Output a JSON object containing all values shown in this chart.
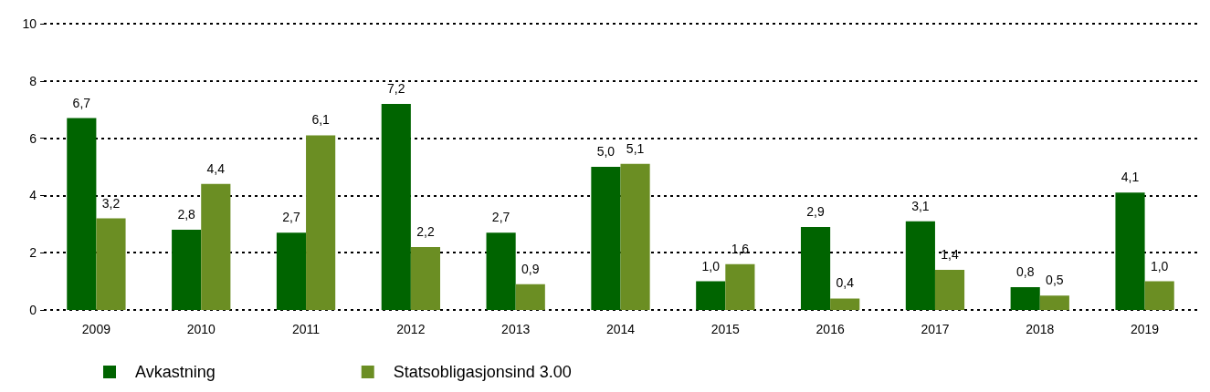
{
  "chart_data": {
    "type": "bar",
    "categories": [
      "2009",
      "2010",
      "2011",
      "2012",
      "2013",
      "2014",
      "2015",
      "2016",
      "2017",
      "2018",
      "2019"
    ],
    "series": [
      {
        "name": "Avkastning",
        "color": "#006400",
        "values": [
          6.7,
          2.8,
          2.7,
          7.2,
          2.7,
          5.0,
          1.0,
          2.9,
          3.1,
          0.8,
          4.1
        ],
        "value_labels": [
          "6,7",
          "2,8",
          "2,7",
          "7,2",
          "2,7",
          "5,0",
          "1,0",
          "2,9",
          "3,1",
          "0,8",
          "4,1"
        ]
      },
      {
        "name": "Statsobligasjonsind 3.00",
        "color": "#6b8e23",
        "values": [
          3.2,
          4.4,
          6.1,
          2.2,
          0.9,
          5.1,
          1.6,
          0.4,
          1.4,
          0.5,
          1.0
        ],
        "value_labels": [
          "3,2",
          "4,4",
          "6,1",
          "2,2",
          "0,9",
          "5,1",
          "1,6",
          "0,4",
          "1,4",
          "0,5",
          "1,0"
        ]
      }
    ],
    "ylim": [
      0,
      10
    ],
    "yticks": [
      0,
      2,
      4,
      6,
      8,
      10
    ],
    "grid": "y",
    "legend": "bottom left"
  }
}
